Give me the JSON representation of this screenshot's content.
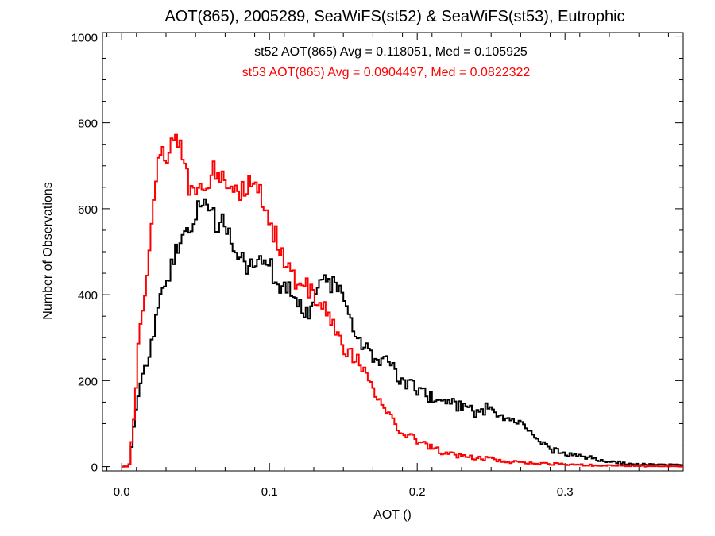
{
  "chart_data": {
    "type": "line",
    "title": "AOT(865), 2005289, SeaWiFS(st52) & SeaWiFS(st53), Eutrophic",
    "xlabel": "AOT ()",
    "ylabel": "Number of Observations",
    "xlim": [
      -0.013,
      0.38
    ],
    "ylim": [
      -10,
      1010
    ],
    "x_ticks": [
      0.0,
      0.1,
      0.2,
      0.3
    ],
    "x_tick_labels": [
      "0.0",
      "0.1",
      "0.2",
      "0.3"
    ],
    "y_ticks": [
      0,
      200,
      400,
      600,
      800,
      1000
    ],
    "y_tick_labels": [
      "0",
      "200",
      "400",
      "600",
      "800",
      "1000"
    ],
    "grid": false,
    "bin_width": 0.0015,
    "x_start": 0.0,
    "annotations": [
      {
        "text": "st52 AOT(865) Avg = 0.118051, Med = 0.105925",
        "color": "#000000"
      },
      {
        "text": "st53 AOT(865) Avg = 0.0904497, Med = 0.0822322",
        "color": "#ff0000"
      }
    ],
    "series": [
      {
        "name": "st52",
        "color": "#000000",
        "x": [
          0.0,
          0.005,
          0.006,
          0.008,
          0.01,
          0.012,
          0.015,
          0.02,
          0.025,
          0.03,
          0.035,
          0.04,
          0.045,
          0.05,
          0.055,
          0.06,
          0.065,
          0.07,
          0.075,
          0.08,
          0.085,
          0.09,
          0.095,
          0.1,
          0.105,
          0.11,
          0.115,
          0.12,
          0.125,
          0.13,
          0.135,
          0.14,
          0.145,
          0.15,
          0.155,
          0.16,
          0.165,
          0.17,
          0.175,
          0.18,
          0.185,
          0.19,
          0.195,
          0.2,
          0.21,
          0.22,
          0.23,
          0.24,
          0.25,
          0.26,
          0.27,
          0.28,
          0.29,
          0.3,
          0.31,
          0.32,
          0.33,
          0.34,
          0.35,
          0.36,
          0.38
        ],
        "y": [
          0,
          0,
          30,
          80,
          150,
          180,
          220,
          280,
          380,
          420,
          480,
          540,
          530,
          580,
          620,
          590,
          560,
          570,
          520,
          480,
          470,
          490,
          460,
          480,
          420,
          430,
          400,
          380,
          350,
          390,
          430,
          420,
          420,
          390,
          350,
          300,
          280,
          250,
          240,
          250,
          220,
          200,
          190,
          180,
          160,
          150,
          140,
          125,
          140,
          110,
          100,
          65,
          40,
          30,
          25,
          18,
          12,
          8,
          5,
          5,
          3
        ]
      },
      {
        "name": "st53",
        "color": "#ff0000",
        "x": [
          0.0,
          0.005,
          0.006,
          0.008,
          0.01,
          0.012,
          0.015,
          0.018,
          0.02,
          0.022,
          0.025,
          0.028,
          0.03,
          0.035,
          0.04,
          0.045,
          0.05,
          0.055,
          0.06,
          0.065,
          0.07,
          0.075,
          0.08,
          0.085,
          0.09,
          0.095,
          0.1,
          0.105,
          0.11,
          0.115,
          0.12,
          0.125,
          0.13,
          0.135,
          0.14,
          0.145,
          0.15,
          0.155,
          0.16,
          0.165,
          0.17,
          0.175,
          0.18,
          0.185,
          0.19,
          0.2,
          0.21,
          0.22,
          0.23,
          0.24,
          0.25,
          0.26,
          0.28,
          0.3,
          0.32,
          0.34,
          0.36,
          0.38
        ],
        "y": [
          0,
          0,
          30,
          100,
          200,
          330,
          380,
          480,
          550,
          640,
          710,
          740,
          720,
          760,
          770,
          650,
          620,
          640,
          680,
          690,
          660,
          640,
          630,
          660,
          690,
          610,
          560,
          530,
          490,
          440,
          420,
          420,
          400,
          380,
          350,
          310,
          280,
          260,
          250,
          220,
          180,
          150,
          120,
          100,
          80,
          60,
          45,
          30,
          25,
          20,
          18,
          12,
          8,
          5,
          3,
          2,
          1,
          0
        ]
      }
    ]
  }
}
